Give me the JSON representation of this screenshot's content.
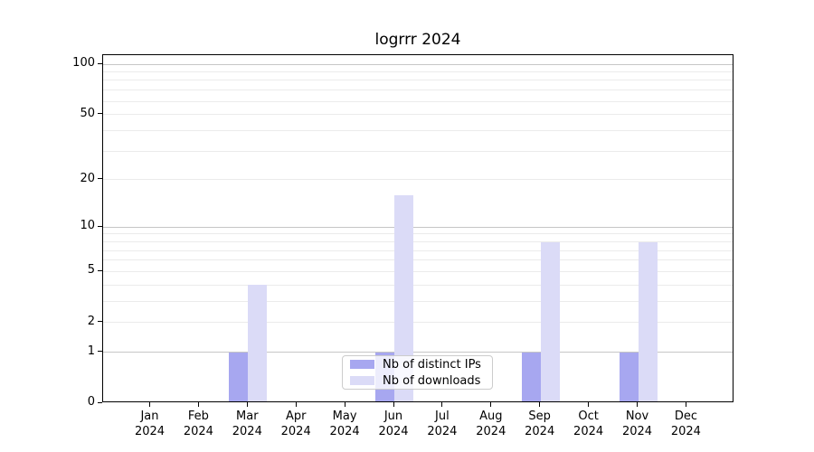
{
  "title": "logrrr 2024",
  "legend": {
    "items": [
      {
        "label": "Nb of distinct IPs",
        "color": "#a7a7f0"
      },
      {
        "label": "Nb of downloads",
        "color": "#dbdbf7"
      }
    ]
  },
  "chart_data": {
    "type": "bar",
    "title": "logrrr 2024",
    "xlabel": "",
    "ylabel": "",
    "yscale": "log-like (positions proportional to log10(1+y))",
    "ylim": [
      0,
      107
    ],
    "grid": true,
    "legend_position": "lower center, inside axes",
    "categories": [
      {
        "month": "Jan",
        "year": "2024"
      },
      {
        "month": "Feb",
        "year": "2024"
      },
      {
        "month": "Mar",
        "year": "2024"
      },
      {
        "month": "Apr",
        "year": "2024"
      },
      {
        "month": "May",
        "year": "2024"
      },
      {
        "month": "Jun",
        "year": "2024"
      },
      {
        "month": "Jul",
        "year": "2024"
      },
      {
        "month": "Aug",
        "year": "2024"
      },
      {
        "month": "Sep",
        "year": "2024"
      },
      {
        "month": "Oct",
        "year": "2024"
      },
      {
        "month": "Nov",
        "year": "2024"
      },
      {
        "month": "Dec",
        "year": "2024"
      }
    ],
    "series": [
      {
        "name": "Nb of distinct IPs",
        "color": "#a7a7f0",
        "values": [
          0,
          0,
          1,
          0,
          0,
          1,
          0,
          0,
          1,
          0,
          1,
          0
        ]
      },
      {
        "name": "Nb of downloads",
        "color": "#dbdbf7",
        "values": [
          0,
          0,
          4,
          0,
          0,
          16,
          0,
          0,
          8,
          0,
          8,
          0
        ]
      }
    ],
    "ytick_values": [
      0,
      1,
      2,
      5,
      10,
      20,
      50,
      100
    ],
    "ytick_labels": [
      "0",
      "1",
      "2",
      "5",
      "10",
      "20",
      "50",
      "100"
    ],
    "major_grid_values": [
      1,
      10,
      100
    ],
    "minor_grid_values": [
      2,
      3,
      4,
      5,
      6,
      7,
      8,
      9,
      20,
      30,
      40,
      50,
      60,
      70,
      80,
      90
    ]
  }
}
